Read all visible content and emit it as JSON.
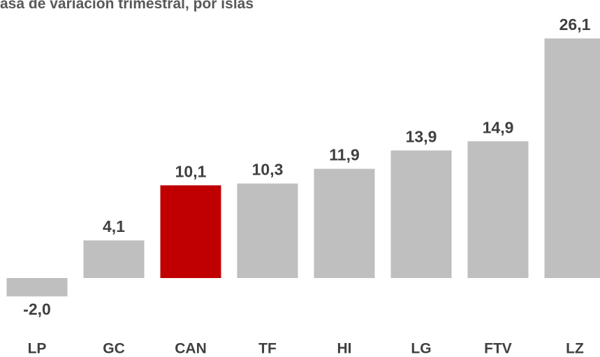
{
  "chart_data": {
    "type": "bar",
    "title": "asa de variación trimestral, por islas",
    "categories": [
      "LP",
      "GC",
      "CAN",
      "TF",
      "HI",
      "LG",
      "FTV",
      "LZ"
    ],
    "values": [
      -2.0,
      4.1,
      10.1,
      10.3,
      11.9,
      13.9,
      14.9,
      26.1
    ],
    "value_labels": [
      "-2,0",
      "4,1",
      "10,1",
      "10,3",
      "11,9",
      "13,9",
      "14,9",
      "26,1"
    ],
    "colors": [
      "#bfbfbf",
      "#bfbfbf",
      "#c00000",
      "#bfbfbf",
      "#bfbfbf",
      "#bfbfbf",
      "#bfbfbf",
      "#bfbfbf"
    ]
  }
}
